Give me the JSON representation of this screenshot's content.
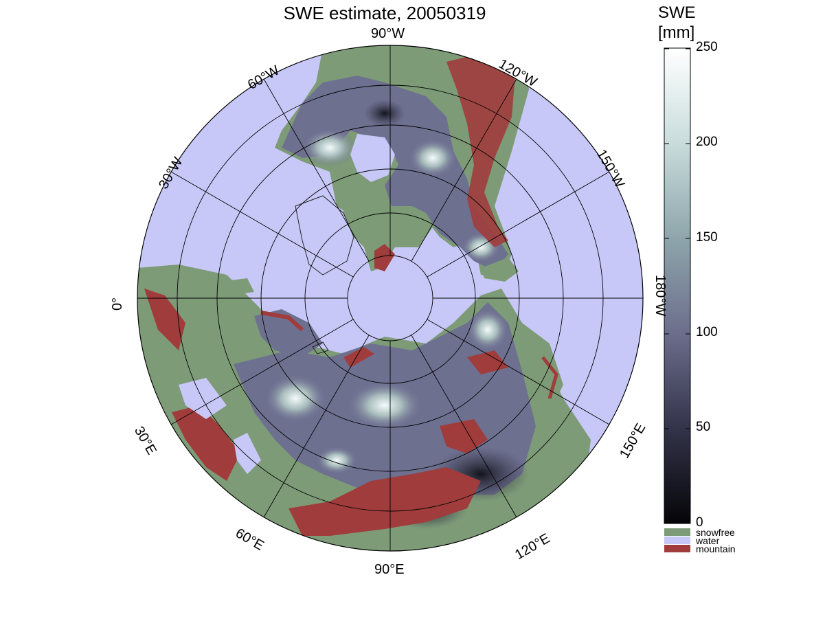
{
  "title": "SWE estimate, 20050319",
  "colorbar": {
    "title": "SWE",
    "unit": "[mm]",
    "ticks": [
      "250",
      "200",
      "150",
      "100",
      "50",
      "0"
    ],
    "range": [
      0,
      250
    ],
    "categories": [
      {
        "label": "snowfree",
        "color": "#7d9b77"
      },
      {
        "label": "water",
        "color": "#c8c8f8"
      },
      {
        "label": "mountain",
        "color": "#a13c3c"
      }
    ]
  },
  "longitude_labels": {
    "lon_90w": "90°W",
    "lon_120w": "120°W",
    "lon_150w": "150°W",
    "lon_180w": "180°W",
    "lon_150e": "150°E",
    "lon_120e": "120°E",
    "lon_90e": "90°E",
    "lon_60e": "60°E",
    "lon_30e": "30°E",
    "lon_0": "0°",
    "lon_30w": "30°W",
    "lon_60w": "60°W"
  },
  "colors": {
    "water": "#c8c8f8",
    "snowfree": "#7d9b77",
    "mountain": "#a13c3c",
    "swe_low": "#101018",
    "swe_mid": "#6e7090",
    "swe_high": "#f4fbfb"
  }
}
